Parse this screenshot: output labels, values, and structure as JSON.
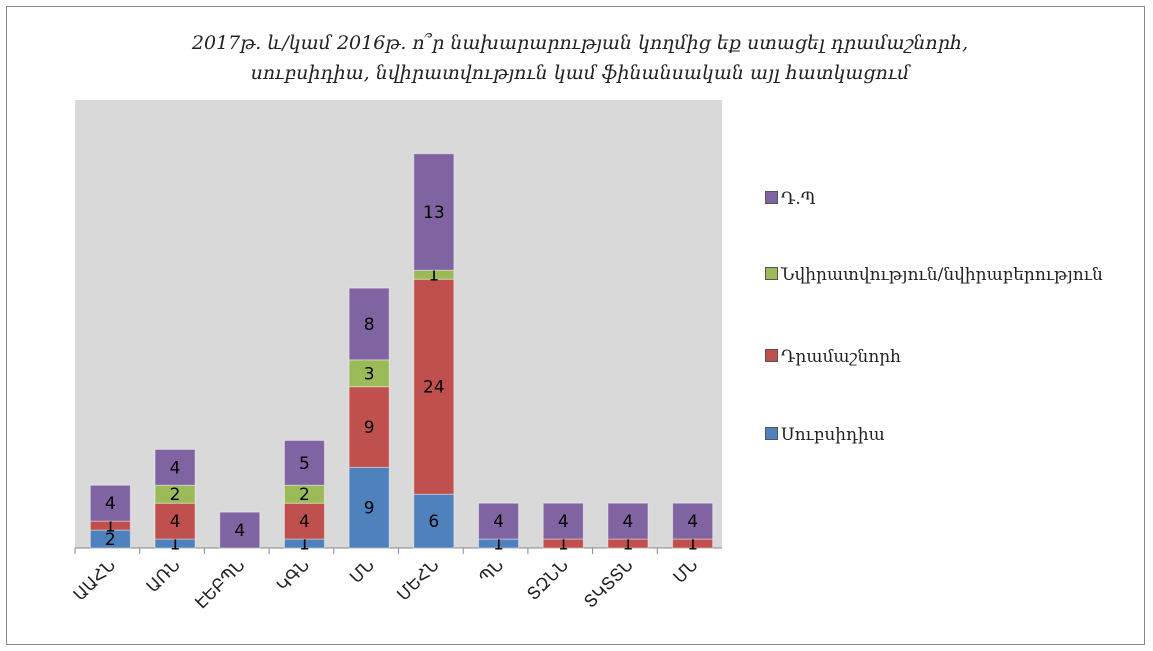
{
  "chart_data": {
    "type": "stacked_bar",
    "title": "2017թ. և/կամ 2016թ. ո՞ր նախարարության կողմից եք ստացել դրամաշնորհ, սուբսիդիա, նվիրատվություն կամ ֆինանսական այլ հատկացում",
    "categories": [
      "ԱԱՀՆ",
      "ԱՌՆ",
      "ԷԵԲՊՆ",
      "ԿԳՆ",
      "ՄՆ",
      "ՄԵՀՆ",
      "ՊՆ",
      "ՏԶՆՆ",
      "ՏԿՏՏՆ",
      "ՄՆ"
    ],
    "series": [
      {
        "name": "Սուբսիդիա",
        "color": "#4f81bd",
        "values": [
          2,
          1,
          null,
          1,
          9,
          6,
          1,
          null,
          null,
          null
        ]
      },
      {
        "name": "Դրամաշնորհ",
        "color": "#c0504d",
        "values": [
          1,
          4,
          null,
          4,
          9,
          24,
          null,
          1,
          1,
          1
        ]
      },
      {
        "name": "Նվիրատվություն/նվիրաբերություն",
        "color": "#9bbb59",
        "values": [
          null,
          2,
          null,
          2,
          3,
          1,
          null,
          null,
          null,
          null
        ]
      },
      {
        "name": "Դ.Պ",
        "color": "#8064a2",
        "values": [
          4,
          4,
          4,
          5,
          8,
          13,
          4,
          4,
          4,
          4
        ]
      }
    ],
    "ylim": [
      0,
      50
    ]
  }
}
